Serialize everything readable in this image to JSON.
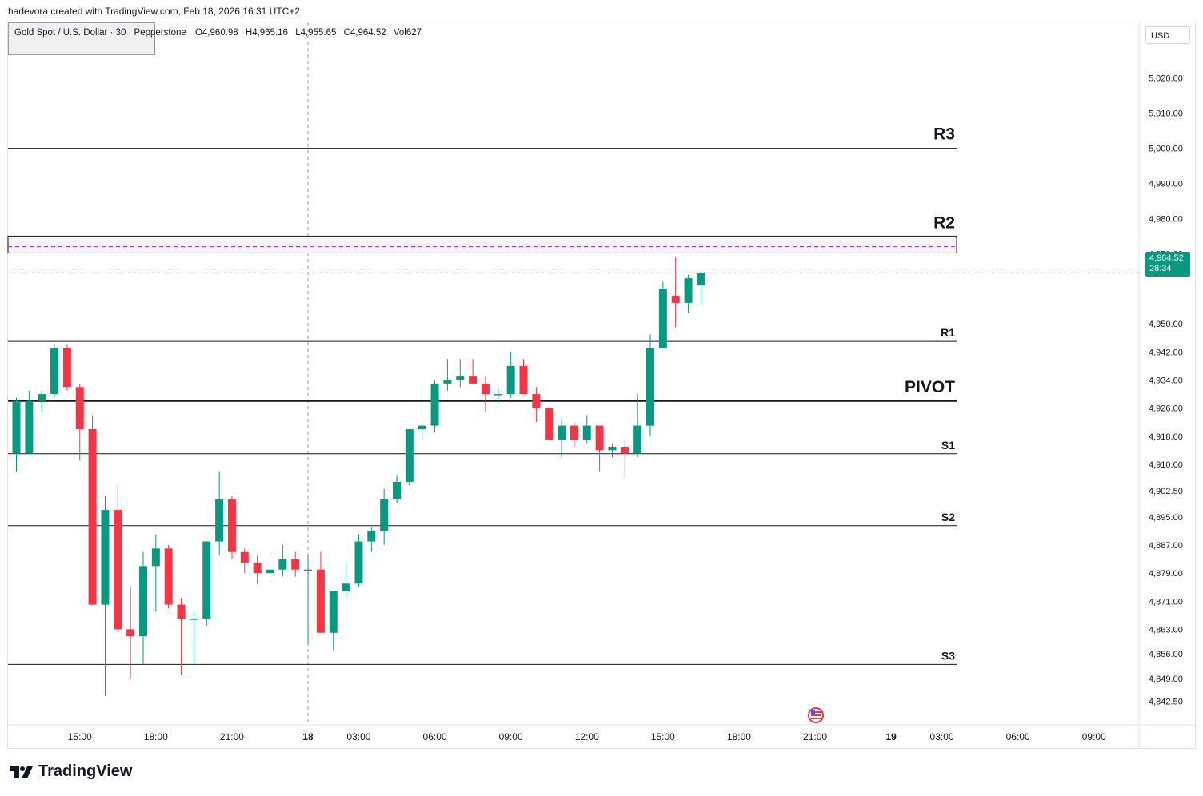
{
  "header": {
    "text": "hadevora created with TradingView.com, Feb 18, 2026 16:31 UTC+2"
  },
  "legend": {
    "symbol": "Gold Spot / U.S. Dollar · 30 · Pepperstone",
    "open_label": "O",
    "open": "4,960.98",
    "high_label": "H",
    "high": "4,965.16",
    "low_label": "L",
    "low": "4,955.65",
    "close_label": "C",
    "close": "4,964.52",
    "vol_label": "Vol",
    "vol": "627"
  },
  "currency": "USD",
  "last_price": {
    "price": "4,964.52",
    "countdown": "28:34"
  },
  "branding": {
    "logo_text": "TradingView"
  },
  "colors": {
    "up": "#089981",
    "down": "#f23645",
    "level_line": "#131722",
    "r2_dash": "#9c27b0",
    "last_price_line": "#089981"
  },
  "chart_data": {
    "type": "candlestick",
    "title": "Gold Spot / U.S. Dollar · 30 · Pepperstone",
    "ylim": [
      4836,
      5032
    ],
    "y_ticks": [
      {
        "v": 5020,
        "label": "5,020.00"
      },
      {
        "v": 5010,
        "label": "5,010.00"
      },
      {
        "v": 5000,
        "label": "5,000.00"
      },
      {
        "v": 4990,
        "label": "4,990.00"
      },
      {
        "v": 4980,
        "label": "4,980.00"
      },
      {
        "v": 4970,
        "label": "4,970.00"
      },
      {
        "v": 4950,
        "label": "4,950.00"
      },
      {
        "v": 4942,
        "label": "4,942.00"
      },
      {
        "v": 4934,
        "label": "4,934.00"
      },
      {
        "v": 4926,
        "label": "4,926.00"
      },
      {
        "v": 4918,
        "label": "4,918.00"
      },
      {
        "v": 4910,
        "label": "4,910.00"
      },
      {
        "v": 4902.5,
        "label": "4,902.50"
      },
      {
        "v": 4895,
        "label": "4,895.00"
      },
      {
        "v": 4887,
        "label": "4,887.00"
      },
      {
        "v": 4879,
        "label": "4,879.00"
      },
      {
        "v": 4871,
        "label": "4,871.00"
      },
      {
        "v": 4863,
        "label": "4,863.00"
      },
      {
        "v": 4856,
        "label": "4,856.00"
      },
      {
        "v": 4849,
        "label": "4,849.00"
      },
      {
        "v": 4842.5,
        "label": "4,842.50"
      }
    ],
    "x_ticks": [
      {
        "i": 5,
        "label": "15:00"
      },
      {
        "i": 11,
        "label": "18:00"
      },
      {
        "i": 17,
        "label": "21:00"
      },
      {
        "i": 23,
        "label": "18",
        "bold": true
      },
      {
        "i": 27,
        "label": "03:00"
      },
      {
        "i": 33,
        "label": "06:00"
      },
      {
        "i": 39,
        "label": "09:00"
      },
      {
        "i": 45,
        "label": "12:00"
      },
      {
        "i": 51,
        "label": "15:00"
      },
      {
        "i": 57,
        "label": "18:00"
      },
      {
        "i": 63,
        "label": "21:00"
      },
      {
        "i": 69,
        "label": "19",
        "bold": true
      },
      {
        "i": 73,
        "label": "03:00"
      },
      {
        "i": 79,
        "label": "06:00"
      },
      {
        "i": 85,
        "label": "09:00"
      }
    ],
    "day_separator_index": 23,
    "levels": [
      {
        "name": "R3",
        "value": 5000,
        "size": "large"
      },
      {
        "name": "R2",
        "value": 4972,
        "size": "large",
        "zone": [
          4970.2,
          4975
        ]
      },
      {
        "name": "R1",
        "value": 4945,
        "size": "small"
      },
      {
        "name": "PIVOT",
        "value": 4928,
        "size": "large"
      },
      {
        "name": "S1",
        "value": 4913,
        "size": "small"
      },
      {
        "name": "S2",
        "value": 4892.5,
        "size": "small"
      },
      {
        "name": "S3",
        "value": 4853,
        "size": "small"
      }
    ],
    "last_price": 4964.52,
    "candles": [
      {
        "o": 4913,
        "h": 4929,
        "l": 4908,
        "c": 4928
      },
      {
        "o": 4913,
        "h": 4931,
        "l": 4913,
        "c": 4928
      },
      {
        "o": 4928,
        "h": 4931,
        "l": 4925,
        "c": 4930
      },
      {
        "o": 4930,
        "h": 4944,
        "l": 4929,
        "c": 4943
      },
      {
        "o": 4943,
        "h": 4944,
        "l": 4931,
        "c": 4932
      },
      {
        "o": 4932,
        "h": 4933,
        "l": 4911,
        "c": 4920
      },
      {
        "o": 4920,
        "h": 4924,
        "l": 4870,
        "c": 4870
      },
      {
        "o": 4870,
        "h": 4901,
        "l": 4844,
        "c": 4897
      },
      {
        "o": 4897,
        "h": 4904,
        "l": 4862,
        "c": 4863
      },
      {
        "o": 4863,
        "h": 4875,
        "l": 4849,
        "c": 4861
      },
      {
        "o": 4861,
        "h": 4885,
        "l": 4853,
        "c": 4881
      },
      {
        "o": 4881,
        "h": 4890,
        "l": 4868,
        "c": 4886
      },
      {
        "o": 4886,
        "h": 4887,
        "l": 4869,
        "c": 4870
      },
      {
        "o": 4870,
        "h": 4872,
        "l": 4850,
        "c": 4866
      },
      {
        "o": 4866,
        "h": 4868,
        "l": 4853,
        "c": 4866
      },
      {
        "o": 4866,
        "h": 4888,
        "l": 4864,
        "c": 4888
      },
      {
        "o": 4888,
        "h": 4908,
        "l": 4884,
        "c": 4900
      },
      {
        "o": 4900,
        "h": 4901,
        "l": 4883,
        "c": 4885
      },
      {
        "o": 4885,
        "h": 4886,
        "l": 4879,
        "c": 4882
      },
      {
        "o": 4882,
        "h": 4884,
        "l": 4876,
        "c": 4879
      },
      {
        "o": 4879,
        "h": 4884,
        "l": 4877,
        "c": 4880
      },
      {
        "o": 4880,
        "h": 4887,
        "l": 4878,
        "c": 4883
      },
      {
        "o": 4883,
        "h": 4885,
        "l": 4878,
        "c": 4880
      },
      {
        "o": 4880,
        "h": 4884,
        "l": 4859,
        "c": 4880
      },
      {
        "o": 4880,
        "h": 4885,
        "l": 4862,
        "c": 4862
      },
      {
        "o": 4862,
        "h": 4874,
        "l": 4857,
        "c": 4874
      },
      {
        "o": 4874,
        "h": 4882,
        "l": 4872,
        "c": 4876
      },
      {
        "o": 4876,
        "h": 4890,
        "l": 4875,
        "c": 4888
      },
      {
        "o": 4888,
        "h": 4892,
        "l": 4885,
        "c": 4891
      },
      {
        "o": 4891,
        "h": 4903,
        "l": 4887,
        "c": 4900
      },
      {
        "o": 4900,
        "h": 4907,
        "l": 4899,
        "c": 4905
      },
      {
        "o": 4905,
        "h": 4920,
        "l": 4904,
        "c": 4920
      },
      {
        "o": 4920,
        "h": 4922,
        "l": 4917,
        "c": 4921
      },
      {
        "o": 4921,
        "h": 4934,
        "l": 4919,
        "c": 4933
      },
      {
        "o": 4933,
        "h": 4940,
        "l": 4931,
        "c": 4934
      },
      {
        "o": 4934,
        "h": 4940,
        "l": 4932,
        "c": 4935
      },
      {
        "o": 4935,
        "h": 4940,
        "l": 4934,
        "c": 4933
      },
      {
        "o": 4933,
        "h": 4935,
        "l": 4925,
        "c": 4930
      },
      {
        "o": 4930,
        "h": 4932,
        "l": 4927,
        "c": 4930
      },
      {
        "o": 4930,
        "h": 4942,
        "l": 4929,
        "c": 4938
      },
      {
        "o": 4938,
        "h": 4940,
        "l": 4930,
        "c": 4930
      },
      {
        "o": 4930,
        "h": 4932,
        "l": 4922,
        "c": 4926
      },
      {
        "o": 4926,
        "h": 4926,
        "l": 4917,
        "c": 4917
      },
      {
        "o": 4917,
        "h": 4923,
        "l": 4912,
        "c": 4921
      },
      {
        "o": 4921,
        "h": 4922,
        "l": 4915,
        "c": 4917
      },
      {
        "o": 4917,
        "h": 4924,
        "l": 4916,
        "c": 4921
      },
      {
        "o": 4921,
        "h": 4921,
        "l": 4908,
        "c": 4914
      },
      {
        "o": 4914,
        "h": 4916,
        "l": 4912,
        "c": 4915
      },
      {
        "o": 4915,
        "h": 4917,
        "l": 4906,
        "c": 4913
      },
      {
        "o": 4913,
        "h": 4930,
        "l": 4912,
        "c": 4921
      },
      {
        "o": 4921,
        "h": 4947,
        "l": 4918,
        "c": 4943
      },
      {
        "o": 4943,
        "h": 4962,
        "l": 4943,
        "c": 4960
      },
      {
        "o": 4958,
        "h": 4969,
        "l": 4949,
        "c": 4956
      },
      {
        "o": 4956,
        "h": 4964,
        "l": 4953,
        "c": 4963
      },
      {
        "o": 4960.98,
        "h": 4965.16,
        "l": 4955.65,
        "c": 4964.52
      }
    ]
  }
}
